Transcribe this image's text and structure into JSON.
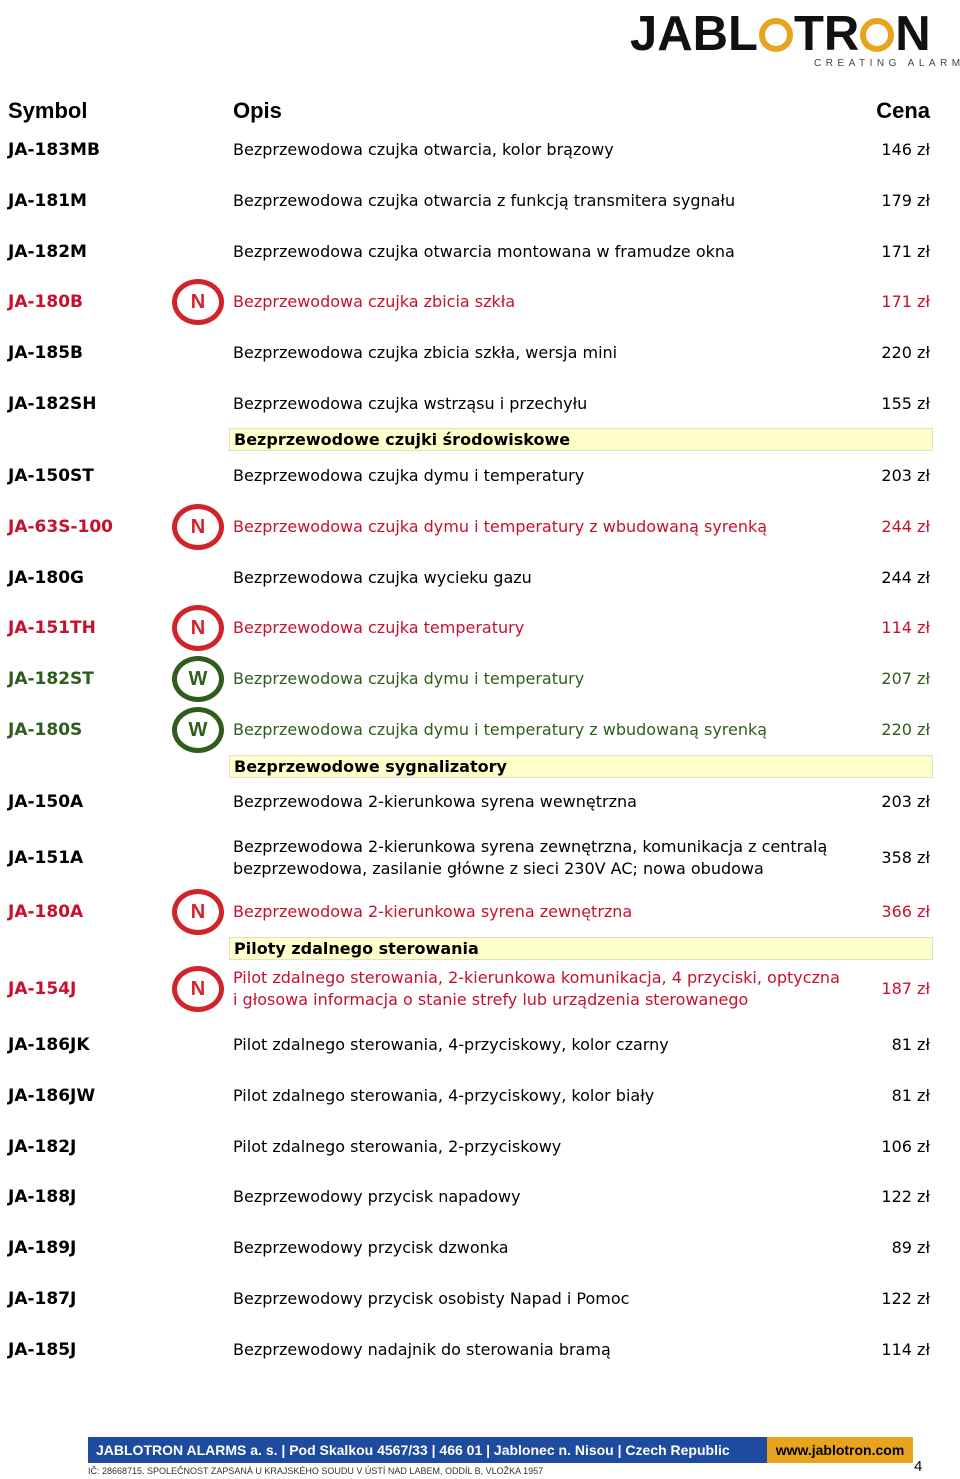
{
  "brand": {
    "name": "JABLOTRON",
    "tagline": "CREATING ALARMS"
  },
  "headers": {
    "symbol": "Symbol",
    "description": "Opis",
    "price": "Cena"
  },
  "rows": [
    {
      "symbol": "JA-183MB",
      "description": "Bezprzewodowa czujka otwarcia, kolor brązowy",
      "price": "146 zł"
    },
    {
      "symbol": "JA-181M",
      "description": "Bezprzewodowa czujka otwarcia z funkcją transmitera sygnału",
      "price": "179 zł"
    },
    {
      "symbol": "JA-182M",
      "description": "Bezprzewodowa czujka otwarcia montowana w framudze okna",
      "price": "171 zł"
    },
    {
      "symbol": "JA-180B",
      "badge": "N",
      "description": "Bezprzewodowa czujka zbicia szkła",
      "price": "171 zł"
    },
    {
      "symbol": "JA-185B",
      "description": "Bezprzewodowa czujka zbicia szkła, wersja mini",
      "price": "220 zł"
    },
    {
      "symbol": "JA-182SH",
      "description": "Bezprzewodowa czujka wstrząsu i przechyłu",
      "price": "155 zł"
    },
    {
      "section": "Bezprzewodowe czujki środowiskowe"
    },
    {
      "symbol": "JA-150ST",
      "description": "Bezprzewodowa czujka dymu i temperatury",
      "price": "203 zł"
    },
    {
      "symbol": "JA-63S-100",
      "badge": "N",
      "description": "Bezprzewodowa czujka dymu i temperatury z wbudowaną syrenką",
      "price": "244 zł"
    },
    {
      "symbol": "JA-180G",
      "description": "Bezprzewodowa czujka wycieku gazu",
      "price": "244 zł"
    },
    {
      "symbol": "JA-151TH",
      "badge": "N",
      "description": "Bezprzewodowa czujka temperatury",
      "price": "114 zł"
    },
    {
      "symbol": "JA-182ST",
      "badge": "W",
      "description": "Bezprzewodowa czujka dymu i temperatury",
      "price": "207 zł"
    },
    {
      "symbol": "JA-180S",
      "badge": "W",
      "description": "Bezprzewodowa czujka dymu i temperatury z wbudowaną syrenką",
      "price": "220 zł"
    },
    {
      "section": "Bezprzewodowe sygnalizatory"
    },
    {
      "symbol": "JA-150A",
      "description": "Bezprzewodowa 2-kierunkowa syrena wewnętrzna",
      "price": "203 zł"
    },
    {
      "symbol": "JA-151A",
      "description_lines": [
        "Bezprzewodowa 2-kierunkowa syrena zewnętrzna, komunikacja z centralą",
        "bezprzewodowa, zasilanie główne z sieci 230V AC; nowa obudowa"
      ],
      "price": "358 zł"
    },
    {
      "symbol": "JA-180A",
      "badge": "N",
      "description": "Bezprzewodowa 2-kierunkowa syrena zewnętrzna",
      "price": "366 zł"
    },
    {
      "section": "Piloty zdalnego sterowania"
    },
    {
      "symbol": "JA-154J",
      "badge": "N",
      "description_lines": [
        "Pilot zdalnego sterowania, 2-kierunkowa komunikacja, 4 przyciski, optyczna",
        "i głosowa informacja o stanie strefy lub urządzenia sterowanego"
      ],
      "price": "187 zł"
    },
    {
      "symbol": "JA-186JK",
      "description": "Pilot zdalnego sterowania, 4-przyciskowy, kolor czarny",
      "price": "81 zł"
    },
    {
      "symbol": "JA-186JW",
      "description": "Pilot zdalnego sterowania, 4-przyciskowy, kolor biały",
      "price": "81 zł"
    },
    {
      "symbol": "JA-182J",
      "description": "Pilot zdalnego sterowania, 2-przyciskowy",
      "price": "106 zł"
    },
    {
      "symbol": "JA-188J",
      "description": "Bezprzewodowy przycisk napadowy",
      "price": "122 zł"
    },
    {
      "symbol": "JA-189J",
      "description": "Bezprzewodowy przycisk dzwonka",
      "price": "89 zł"
    },
    {
      "symbol": "JA-187J",
      "description": "Bezprzewodowy przycisk osobisty Napad i Pomoc",
      "price": "122 zł"
    },
    {
      "symbol": "JA-185J",
      "description": "Bezprzewodowy nadajnik do sterowania bramą",
      "price": "114 zł"
    }
  ],
  "colors": {
    "new_badge": "#d1232a",
    "w_badge": "#2f5d1c",
    "section_bg": "#ffffcc",
    "footer_blue": "#1e4aa0",
    "footer_orange": "#e8a41c"
  },
  "footer": {
    "address": "JABLOTRON ALARMS a. s.  |  Pod Skalkou 4567/33  |  466 01  |  Jablonec n. Nisou  |  Czech Republic",
    "website": "www.jablotron.com",
    "legal": "IČ: 28668715. SPOLEČNOST ZAPSANÁ U KRAJSKÉHO SOUDU V ÚSTÍ NAD LABEM, ODDÍL B, VLOŽKA 1957"
  },
  "page_number": "4"
}
